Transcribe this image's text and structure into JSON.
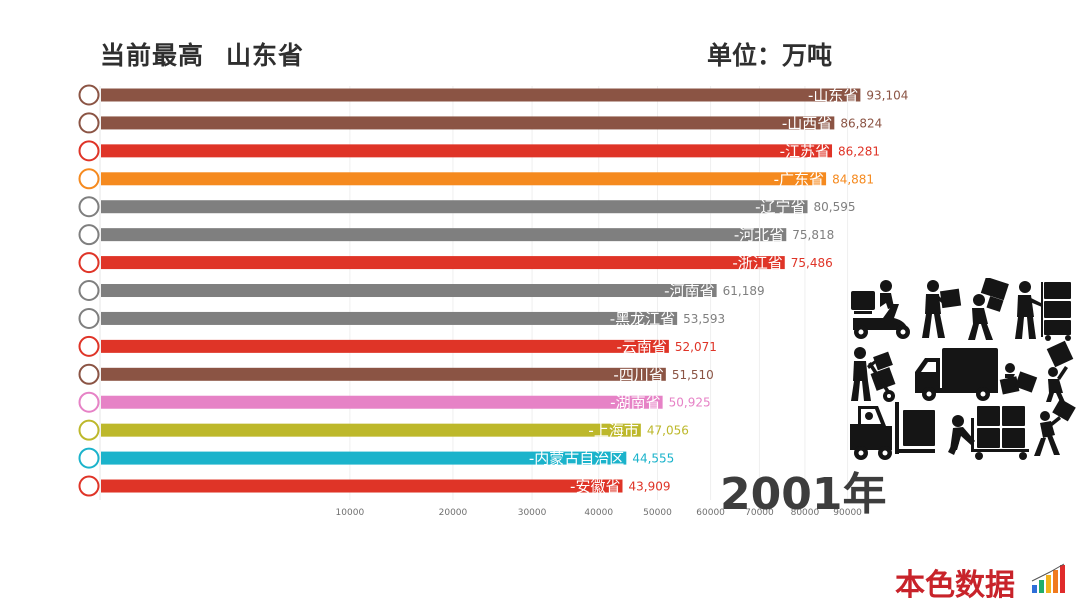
{
  "header": {
    "title_label": "当前最高",
    "leader": "山东省",
    "unit": "单位：万吨"
  },
  "year": "2001年",
  "brand": {
    "name": "本色数据",
    "icon": "bar-chart-logo-icon",
    "color": "#c8232a"
  },
  "pictogram": {
    "icons": [
      "delivery-scooter-icon",
      "courier-carrying-box-icon",
      "courier-carrying-boxes-icon",
      "courier-with-stacked-boxes-icon",
      "hand-truck-icon",
      "delivery-truck-icon",
      "courier-pushing-boxes-icon",
      "courier-lifting-box-icon",
      "forklift-icon",
      "cart-with-boxes-icon",
      "courier-lifting-box-icon-2"
    ]
  },
  "chart_data": {
    "type": "bar",
    "orientation": "horizontal",
    "x_scale": "sqrt",
    "grid": true,
    "xlim": [
      0,
      100000
    ],
    "x_ticks": [
      10000,
      20000,
      30000,
      40000,
      50000,
      60000,
      70000,
      80000,
      90000
    ],
    "bar_label_prefix": "-",
    "categories": [
      "山东省",
      "山西省",
      "江苏省",
      "广东省",
      "辽宁省",
      "河北省",
      "浙江省",
      "河南省",
      "黑龙江省",
      "云南省",
      "四川省",
      "湖南省",
      "上海市",
      "内蒙古自治区",
      "安徽省"
    ],
    "values": [
      93104,
      86824,
      86281,
      84881,
      80595,
      75818,
      75486,
      61189,
      53593,
      52071,
      51510,
      50925,
      47056,
      44555,
      43909
    ],
    "colors": [
      "#8b5444",
      "#8b5444",
      "#df3427",
      "#f58a1f",
      "#7f7f7f",
      "#7f7f7f",
      "#df3427",
      "#7f7f7f",
      "#7f7f7f",
      "#df3427",
      "#8b5444",
      "#e682c6",
      "#bdb82b",
      "#1bb3cb",
      "#df3427"
    ]
  }
}
